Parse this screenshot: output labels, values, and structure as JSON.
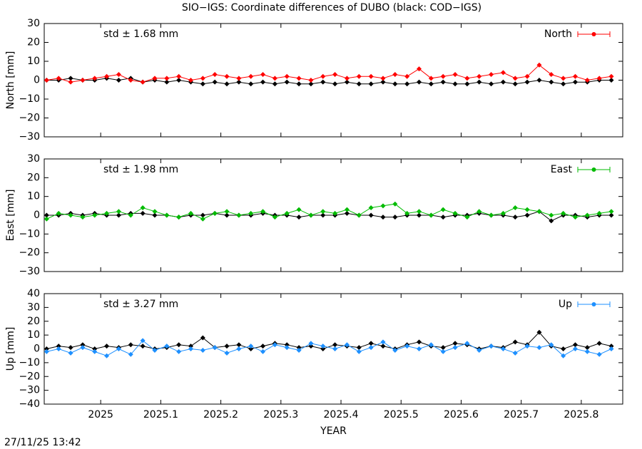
{
  "title": "SIO−IGS: Coordinate differences of DUBO (black: COD−IGS)",
  "timestamp": "27/11/25 13:42",
  "chart_data": [
    {
      "type": "line",
      "y_label": "North [mm]",
      "annotation": "std ± 1.68 mm",
      "legend": "upper right",
      "xticklabels": false,
      "xlim": [
        2024.906,
        2025.869
      ],
      "xticks": [
        2025,
        2025.1,
        2025.2,
        2025.3,
        2025.4,
        2025.5,
        2025.6,
        2025.7,
        2025.8
      ],
      "ylim": [
        -30,
        30
      ],
      "yticks": [
        {
          "value": -30,
          "label": "−30"
        },
        {
          "value": -20,
          "label": "−20"
        },
        {
          "value": -10,
          "label": "−10"
        },
        0,
        10,
        20,
        30
      ],
      "x": [
        2024.91,
        2024.93,
        2024.95,
        2024.97,
        2024.99,
        2025.01,
        2025.03,
        2025.05,
        2025.07,
        2025.09,
        2025.11,
        2025.13,
        2025.15,
        2025.17,
        2025.19,
        2025.21,
        2025.23,
        2025.25,
        2025.27,
        2025.29,
        2025.31,
        2025.33,
        2025.35,
        2025.37,
        2025.39,
        2025.41,
        2025.43,
        2025.45,
        2025.47,
        2025.49,
        2025.51,
        2025.53,
        2025.55,
        2025.57,
        2025.59,
        2025.61,
        2025.63,
        2025.65,
        2025.67,
        2025.69,
        2025.71,
        2025.73,
        2025.75,
        2025.77,
        2025.79,
        2025.81,
        2025.83,
        2025.85
      ],
      "series": [
        {
          "color": "#000000",
          "values": [
            0,
            0,
            1,
            0,
            0,
            1,
            0,
            1,
            -1,
            0,
            -1,
            0,
            -1,
            -2,
            -1,
            -2,
            -1,
            -2,
            -1,
            -2,
            -1,
            -2,
            -2,
            -1,
            -2,
            -1,
            -2,
            -2,
            -1,
            -2,
            -2,
            -1,
            -2,
            -1,
            -2,
            -2,
            -1,
            -2,
            -1,
            -2,
            -1,
            0,
            -1,
            -2,
            -1,
            -1,
            0,
            0
          ]
        },
        {
          "name": "North",
          "color": "#ff0000",
          "values": [
            0,
            1,
            -1,
            0,
            1,
            2,
            3,
            0,
            -1,
            1,
            1,
            2,
            0,
            1,
            3,
            2,
            1,
            2,
            3,
            1,
            2,
            1,
            0,
            2,
            3,
            1,
            2,
            2,
            1,
            3,
            2,
            6,
            1,
            2,
            3,
            1,
            2,
            3,
            4,
            1,
            2,
            8,
            3,
            1,
            2,
            0,
            1,
            2
          ]
        }
      ]
    },
    {
      "type": "line",
      "y_label": "East [mm]",
      "annotation": "std ± 1.98 mm",
      "legend": "upper right",
      "xticklabels": false,
      "xlim": [
        2024.906,
        2025.869
      ],
      "xticks": [
        2025,
        2025.1,
        2025.2,
        2025.3,
        2025.4,
        2025.5,
        2025.6,
        2025.7,
        2025.8
      ],
      "ylim": [
        -30,
        30
      ],
      "yticks": [
        {
          "value": -30,
          "label": "−30"
        },
        {
          "value": -20,
          "label": "−20"
        },
        {
          "value": -10,
          "label": "−10"
        },
        0,
        10,
        20,
        30
      ],
      "x": [
        2024.91,
        2024.93,
        2024.95,
        2024.97,
        2024.99,
        2025.01,
        2025.03,
        2025.05,
        2025.07,
        2025.09,
        2025.11,
        2025.13,
        2025.15,
        2025.17,
        2025.19,
        2025.21,
        2025.23,
        2025.25,
        2025.27,
        2025.29,
        2025.31,
        2025.33,
        2025.35,
        2025.37,
        2025.39,
        2025.41,
        2025.43,
        2025.45,
        2025.47,
        2025.49,
        2025.51,
        2025.53,
        2025.55,
        2025.57,
        2025.59,
        2025.61,
        2025.63,
        2025.65,
        2025.67,
        2025.69,
        2025.71,
        2025.73,
        2025.75,
        2025.77,
        2025.79,
        2025.81,
        2025.83,
        2025.85
      ],
      "series": [
        {
          "color": "#000000",
          "values": [
            0,
            0,
            1,
            0,
            1,
            0,
            0,
            1,
            1,
            0,
            0,
            -1,
            0,
            0,
            1,
            0,
            0,
            0,
            1,
            0,
            0,
            -1,
            0,
            0,
            0,
            1,
            0,
            0,
            -1,
            -1,
            0,
            0,
            0,
            -1,
            0,
            0,
            1,
            0,
            0,
            -1,
            0,
            2,
            -3,
            0,
            0,
            -1,
            0,
            0
          ]
        },
        {
          "name": "East",
          "color": "#00bb00",
          "values": [
            -2,
            1,
            0,
            -1,
            0,
            1,
            2,
            0,
            4,
            2,
            0,
            -1,
            1,
            -2,
            1,
            2,
            0,
            1,
            2,
            -1,
            1,
            3,
            0,
            2,
            1,
            3,
            0,
            4,
            5,
            6,
            1,
            2,
            0,
            3,
            1,
            -1,
            2,
            0,
            1,
            4,
            3,
            2,
            0,
            1,
            -1,
            0,
            1,
            2
          ]
        }
      ]
    },
    {
      "type": "line",
      "y_label": "Up [mm]",
      "x_label": "YEAR",
      "annotation": "std ± 3.27 mm",
      "legend": "upper right",
      "xticklabels": true,
      "xlim": [
        2024.906,
        2025.869
      ],
      "xticks": [
        2025,
        2025.1,
        2025.2,
        2025.3,
        2025.4,
        2025.5,
        2025.6,
        2025.7,
        2025.8
      ],
      "ylim": [
        -40,
        40
      ],
      "yticks": [
        {
          "value": -40,
          "label": "−40"
        },
        {
          "value": -30,
          "label": "−30"
        },
        {
          "value": -20,
          "label": "−20"
        },
        {
          "value": -10,
          "label": "−10"
        },
        0,
        10,
        20,
        30,
        40
      ],
      "x": [
        2024.91,
        2024.93,
        2024.95,
        2024.97,
        2024.99,
        2025.01,
        2025.03,
        2025.05,
        2025.07,
        2025.09,
        2025.11,
        2025.13,
        2025.15,
        2025.17,
        2025.19,
        2025.21,
        2025.23,
        2025.25,
        2025.27,
        2025.29,
        2025.31,
        2025.33,
        2025.35,
        2025.37,
        2025.39,
        2025.41,
        2025.43,
        2025.45,
        2025.47,
        2025.49,
        2025.51,
        2025.53,
        2025.55,
        2025.57,
        2025.59,
        2025.61,
        2025.63,
        2025.65,
        2025.67,
        2025.69,
        2025.71,
        2025.73,
        2025.75,
        2025.77,
        2025.79,
        2025.81,
        2025.83,
        2025.85
      ],
      "series": [
        {
          "color": "#000000",
          "values": [
            0,
            2,
            1,
            3,
            0,
            2,
            1,
            3,
            2,
            0,
            1,
            3,
            2,
            8,
            1,
            2,
            3,
            0,
            2,
            4,
            3,
            1,
            2,
            0,
            3,
            2,
            1,
            4,
            2,
            0,
            3,
            5,
            2,
            1,
            4,
            3,
            0,
            2,
            1,
            5,
            3,
            12,
            2,
            0,
            3,
            1,
            4,
            2
          ]
        },
        {
          "name": "Up",
          "color": "#1e90ff",
          "values": [
            -2,
            0,
            -3,
            1,
            -2,
            -5,
            0,
            -4,
            6,
            -1,
            2,
            -2,
            0,
            -1,
            1,
            -3,
            0,
            2,
            -2,
            3,
            1,
            -1,
            4,
            2,
            0,
            3,
            -2,
            1,
            5,
            -1,
            2,
            0,
            3,
            -2,
            1,
            4,
            -1,
            2,
            0,
            -3,
            2,
            1,
            3,
            -5,
            0,
            -2,
            -4,
            0
          ]
        }
      ]
    }
  ]
}
